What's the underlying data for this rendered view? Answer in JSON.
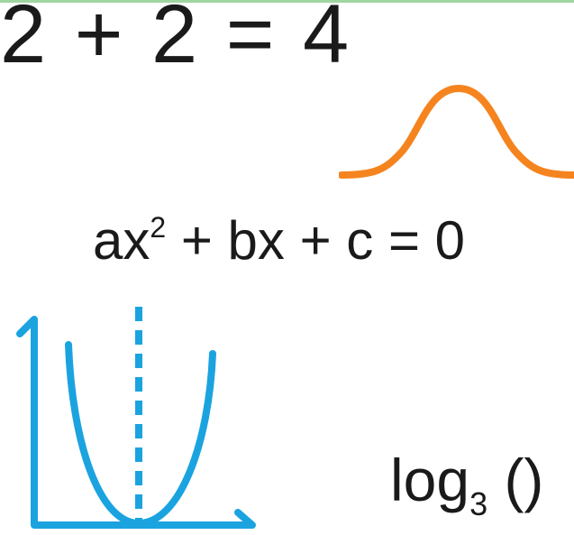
{
  "colors": {
    "text": "#1a1a1a",
    "bell_curve": "#f5841f",
    "parabola": "#1ba3e0",
    "top_rule": "#9fd59f"
  },
  "equation_simple": "2 + 2 = 4",
  "equation_quadratic": {
    "term_a": "ax",
    "exponent": "2",
    "rest": " + bx + c = 0"
  },
  "log_label": {
    "base_text": "log",
    "subscript": "3",
    "parens": " ()"
  },
  "icons": {
    "bell_curve": "bell-curve-icon",
    "parabola_graph": "parabola-graph-icon"
  }
}
